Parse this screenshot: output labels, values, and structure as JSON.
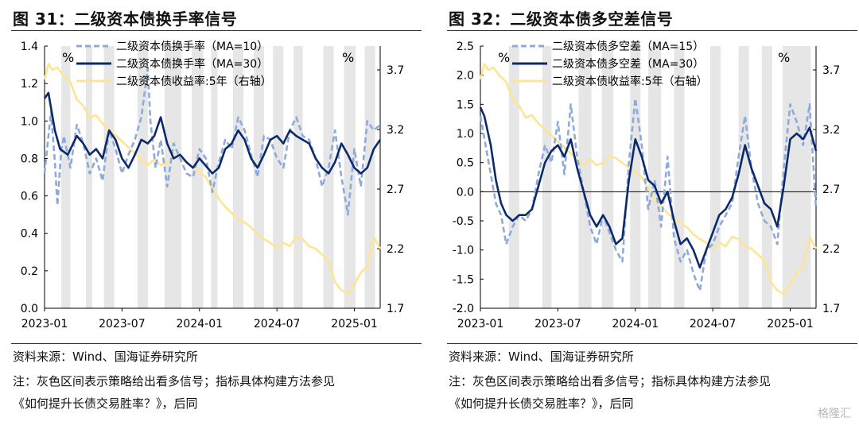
{
  "panels": [
    {
      "figure_title": "图 31：二级资本债换手率信号",
      "source": "资料来源：Wind、国海证券研究所",
      "note_line1": "注：灰色区间表示策略给出看多信号；指标具体构建方法参见",
      "note_line2": "《如何提升长债交易胜率？》，后同"
    },
    {
      "figure_title": "图 32：二级资本债多空差信号",
      "source": "资料来源：Wind、国海证券研究所",
      "note_line1": "注：灰色区间表示策略给出看多信号；指标具体构建方法参见",
      "note_line2": "《如何提升长债交易胜率？》，后同"
    }
  ],
  "watermark": "格隆汇",
  "chart_data": [
    {
      "type": "line",
      "title": "二级资本债换手率信号",
      "left_unit": "%",
      "right_unit": "%",
      "ylim_left": [
        0.0,
        1.4
      ],
      "yticks_left": [
        "0.0",
        "0.2",
        "0.4",
        "0.6",
        "0.8",
        "1.0",
        "1.2",
        "1.4"
      ],
      "ylim_right": [
        1.7,
        3.9
      ],
      "yticks_right": [
        "1.7",
        "2.2",
        "2.7",
        "3.2",
        "3.7"
      ],
      "x_ticks": [
        "2023-01",
        "2023-07",
        "2024-01",
        "2024-07",
        "2025-01"
      ],
      "x_range_months": [
        0,
        26
      ],
      "zero_line": false,
      "legend": [
        "二级资本债换手率（MA=10）",
        "二级资本债换手率（MA=30）",
        "二级资本债收益率:5年（右轴）"
      ],
      "colors": {
        "ma_short": "#8eaadb",
        "ma_long": "#0c2a6b",
        "yield": "#fde596",
        "shade": "#e6e6e6"
      },
      "shaded_periods": [
        [
          1.3,
          2.0
        ],
        [
          3.2,
          3.7
        ],
        [
          4.6,
          5.4
        ],
        [
          7.2,
          8.0
        ],
        [
          9.3,
          10.6
        ],
        [
          11.4,
          12.3
        ],
        [
          12.9,
          13.4
        ],
        [
          14.6,
          15.4
        ],
        [
          16.2,
          17.0
        ],
        [
          17.7,
          18.5
        ],
        [
          19.3,
          20.0
        ],
        [
          21.6,
          22.4
        ],
        [
          23.2,
          24.1
        ],
        [
          24.8,
          25.6
        ]
      ],
      "series": [
        {
          "name": "二级资本债换手率（MA=10）",
          "axis": "left",
          "x": [
            0,
            0.5,
            0.8,
            1,
            1.3,
            1.5,
            2,
            2.5,
            3,
            3.5,
            4,
            4.5,
            5,
            5.5,
            6,
            6.5,
            7,
            7.5,
            8,
            8.2,
            8.6,
            9,
            9.5,
            10,
            10.5,
            11,
            11.5,
            12,
            12.5,
            13,
            13.5,
            14,
            14.5,
            15,
            15.5,
            16,
            16.5,
            17,
            17.5,
            18,
            18.5,
            19,
            19.5,
            20,
            20.5,
            21,
            21.5,
            22,
            22.5,
            23,
            23.5,
            24,
            24.5,
            25,
            25.5,
            26
          ],
          "values": [
            0.72,
            1.05,
            0.78,
            0.55,
            0.85,
            0.92,
            0.75,
            0.98,
            0.88,
            0.72,
            0.8,
            0.68,
            0.95,
            0.85,
            0.72,
            0.82,
            0.9,
            1.02,
            1.28,
            1.0,
            0.75,
            0.9,
            0.65,
            0.88,
            0.8,
            0.72,
            0.7,
            0.85,
            0.8,
            0.62,
            0.78,
            0.9,
            0.85,
            1.02,
            0.95,
            0.82,
            0.7,
            0.92,
            0.9,
            0.8,
            0.75,
            0.95,
            1.02,
            0.92,
            0.9,
            0.8,
            0.65,
            0.75,
            0.95,
            0.7,
            0.5,
            0.85,
            0.65,
            1.0,
            0.95,
            0.98
          ]
        },
        {
          "name": "二级资本债换手率（MA=30）",
          "axis": "left",
          "x": [
            0,
            0.3,
            0.8,
            1.2,
            1.8,
            2.5,
            3,
            3.5,
            4,
            4.5,
            5,
            5.5,
            6,
            6.5,
            7,
            7.5,
            8,
            8.5,
            9,
            9.5,
            10,
            10.5,
            11,
            11.5,
            12,
            12.5,
            13,
            13.5,
            14,
            14.5,
            15,
            15.5,
            16,
            16.5,
            17,
            17.5,
            18,
            18.5,
            19,
            19.5,
            20,
            20.5,
            21,
            21.5,
            22,
            22.5,
            23,
            23.5,
            24,
            24.5,
            25,
            25.5,
            26
          ],
          "values": [
            1.12,
            1.15,
            0.95,
            0.85,
            0.82,
            0.92,
            0.88,
            0.82,
            0.85,
            0.8,
            0.95,
            0.9,
            0.8,
            0.75,
            0.82,
            0.9,
            0.88,
            0.92,
            1.02,
            0.88,
            0.8,
            0.82,
            0.78,
            0.75,
            0.8,
            0.76,
            0.72,
            0.75,
            0.85,
            0.88,
            0.95,
            0.9,
            0.8,
            0.75,
            0.82,
            0.9,
            0.92,
            0.88,
            0.95,
            0.92,
            0.9,
            0.88,
            0.8,
            0.75,
            0.72,
            0.78,
            0.88,
            0.82,
            0.75,
            0.72,
            0.75,
            0.85,
            0.9
          ]
        },
        {
          "name": "二级资本债收益率:5年（右轴）",
          "axis": "right",
          "x": [
            0,
            0.3,
            0.6,
            1,
            1.5,
            2,
            2.5,
            3,
            3.5,
            4,
            4.5,
            5,
            5.5,
            6,
            6.5,
            7,
            7.5,
            8,
            8.5,
            9,
            9.5,
            10,
            10.5,
            11,
            11.5,
            12,
            12.5,
            13,
            13.5,
            14,
            14.5,
            15,
            15.5,
            16,
            16.5,
            17,
            17.5,
            18,
            18.5,
            19,
            19.5,
            20,
            20.5,
            21,
            21.5,
            22,
            22.5,
            23,
            23.5,
            24,
            24.5,
            25,
            25.5,
            26
          ],
          "values": [
            3.62,
            3.75,
            3.7,
            3.72,
            3.65,
            3.6,
            3.45,
            3.4,
            3.3,
            3.32,
            3.25,
            3.2,
            3.15,
            3.1,
            3.05,
            3.0,
            2.95,
            2.9,
            2.95,
            2.9,
            2.92,
            2.98,
            2.96,
            2.92,
            2.88,
            2.85,
            2.8,
            2.7,
            2.62,
            2.55,
            2.5,
            2.45,
            2.42,
            2.38,
            2.32,
            2.28,
            2.25,
            2.2,
            2.25,
            2.22,
            2.3,
            2.28,
            2.22,
            2.2,
            2.15,
            2.1,
            1.92,
            1.85,
            1.82,
            1.9,
            2.0,
            2.05,
            2.3,
            2.2
          ]
        }
      ]
    },
    {
      "type": "line",
      "title": "二级资本债多空差信号",
      "left_unit": "%",
      "right_unit": "%",
      "ylim_left": [
        -2.0,
        2.5
      ],
      "yticks_left": [
        "-2.0",
        "-1.5",
        "-1.0",
        "-0.5",
        "0.0",
        "0.5",
        "1.0",
        "1.5",
        "2.0",
        "2.5"
      ],
      "ylim_right": [
        1.7,
        3.9
      ],
      "yticks_right": [
        "1.7",
        "2.2",
        "2.7",
        "3.2",
        "3.7"
      ],
      "x_ticks": [
        "2023-01",
        "2023-07",
        "2024-01",
        "2024-07",
        "2025-01"
      ],
      "x_range_months": [
        0,
        26
      ],
      "zero_line": true,
      "legend": [
        "二级资本债多空差（MA=15）",
        "二级资本债多空差（MA=30）",
        "二级资本债收益率:5年（右轴）"
      ],
      "colors": {
        "ma_short": "#8eaadb",
        "ma_long": "#0c2a6b",
        "yield": "#fde596",
        "shade": "#e6e6e6"
      },
      "shaded_periods": [
        [
          2.2,
          3.0
        ],
        [
          4.8,
          5.5
        ],
        [
          7.6,
          8.6
        ],
        [
          9.4,
          10.3
        ],
        [
          11.6,
          12.4
        ],
        [
          13.0,
          14.0
        ],
        [
          15.0,
          15.8
        ],
        [
          17.8,
          18.6
        ],
        [
          20.0,
          20.8
        ],
        [
          21.8,
          22.6
        ],
        [
          23.4,
          25.6
        ]
      ],
      "series": [
        {
          "name": "二级资本债多空差（MA=15）",
          "axis": "left",
          "x": [
            0,
            0.4,
            0.8,
            1.2,
            1.6,
            2,
            2.5,
            3,
            3.5,
            4,
            4.5,
            5,
            5.5,
            6,
            6.5,
            7,
            7.5,
            8,
            8.5,
            9,
            9.5,
            10,
            10.5,
            11,
            11.5,
            12,
            12.5,
            13,
            13.5,
            14,
            14.5,
            15,
            15.5,
            16,
            16.5,
            17,
            17.5,
            18,
            18.5,
            19,
            19.5,
            20,
            20.5,
            21,
            21.5,
            22,
            22.5,
            23,
            23.5,
            24,
            24.5,
            25,
            25.5,
            26
          ],
          "values": [
            1.3,
            0.8,
            0.3,
            -0.2,
            -0.4,
            -0.9,
            -0.6,
            -0.4,
            -0.5,
            -0.3,
            0.3,
            0.8,
            0.5,
            1.2,
            0.3,
            1.5,
            0.6,
            0.0,
            -0.6,
            -0.9,
            -0.4,
            -0.7,
            -1.0,
            -1.2,
            0.5,
            1.6,
            0.8,
            -0.3,
            0.2,
            -0.6,
            0.6,
            -0.8,
            -1.2,
            -1.0,
            -1.4,
            -1.7,
            -1.0,
            -0.9,
            -0.6,
            -0.4,
            -0.2,
            0.6,
            1.3,
            0.4,
            -0.2,
            -0.5,
            -0.6,
            -0.9,
            0.4,
            1.5,
            1.2,
            0.8,
            1.5,
            -0.3
          ]
        },
        {
          "name": "二级资本债多空差（MA=30）",
          "axis": "left",
          "x": [
            0,
            0.3,
            0.8,
            1.2,
            1.6,
            2,
            2.5,
            3,
            3.5,
            4,
            4.5,
            5,
            5.5,
            6,
            6.5,
            7,
            7.5,
            8,
            8.5,
            9,
            9.5,
            10,
            10.5,
            11,
            11.5,
            12,
            12.5,
            13,
            13.5,
            14,
            14.5,
            15,
            15.5,
            16,
            16.5,
            17,
            17.5,
            18,
            18.5,
            19,
            19.5,
            20,
            20.5,
            21,
            21.5,
            22,
            22.5,
            23,
            23.5,
            24,
            24.5,
            25,
            25.5,
            26
          ],
          "values": [
            1.45,
            1.3,
            0.8,
            0.2,
            -0.2,
            -0.4,
            -0.5,
            -0.4,
            -0.4,
            -0.3,
            0.1,
            0.5,
            0.7,
            0.8,
            0.6,
            0.9,
            0.4,
            0.0,
            -0.4,
            -0.6,
            -0.4,
            -0.6,
            -0.9,
            -0.8,
            0.2,
            0.9,
            0.6,
            0.2,
            0.1,
            -0.2,
            0.0,
            -0.5,
            -0.9,
            -0.8,
            -1.0,
            -1.3,
            -1.0,
            -0.7,
            -0.4,
            -0.3,
            -0.1,
            0.3,
            0.8,
            0.4,
            0.1,
            -0.2,
            -0.3,
            -0.6,
            0.1,
            0.9,
            1.0,
            0.9,
            1.1,
            0.7
          ]
        },
        {
          "name": "二级资本债收益率:5年（右轴）",
          "axis": "right",
          "x": [
            0,
            0.3,
            0.6,
            1,
            1.5,
            2,
            2.5,
            3,
            3.5,
            4,
            4.5,
            5,
            5.5,
            6,
            6.5,
            7,
            7.5,
            8,
            8.5,
            9,
            9.5,
            10,
            10.5,
            11,
            11.5,
            12,
            12.5,
            13,
            13.5,
            14,
            14.5,
            15,
            15.5,
            16,
            16.5,
            17,
            17.5,
            18,
            18.5,
            19,
            19.5,
            20,
            20.5,
            21,
            21.5,
            22,
            22.5,
            23,
            23.5,
            24,
            24.5,
            25,
            25.5,
            26
          ],
          "values": [
            3.62,
            3.75,
            3.7,
            3.72,
            3.65,
            3.6,
            3.45,
            3.4,
            3.3,
            3.32,
            3.25,
            3.2,
            3.15,
            3.1,
            3.05,
            3.0,
            2.95,
            2.9,
            2.95,
            2.9,
            2.92,
            2.98,
            2.96,
            2.92,
            2.88,
            2.85,
            2.8,
            2.7,
            2.62,
            2.55,
            2.5,
            2.45,
            2.42,
            2.38,
            2.32,
            2.28,
            2.25,
            2.2,
            2.25,
            2.22,
            2.3,
            2.28,
            2.22,
            2.2,
            2.15,
            2.1,
            1.92,
            1.85,
            1.82,
            1.9,
            2.0,
            2.05,
            2.3,
            2.2
          ]
        }
      ]
    }
  ]
}
